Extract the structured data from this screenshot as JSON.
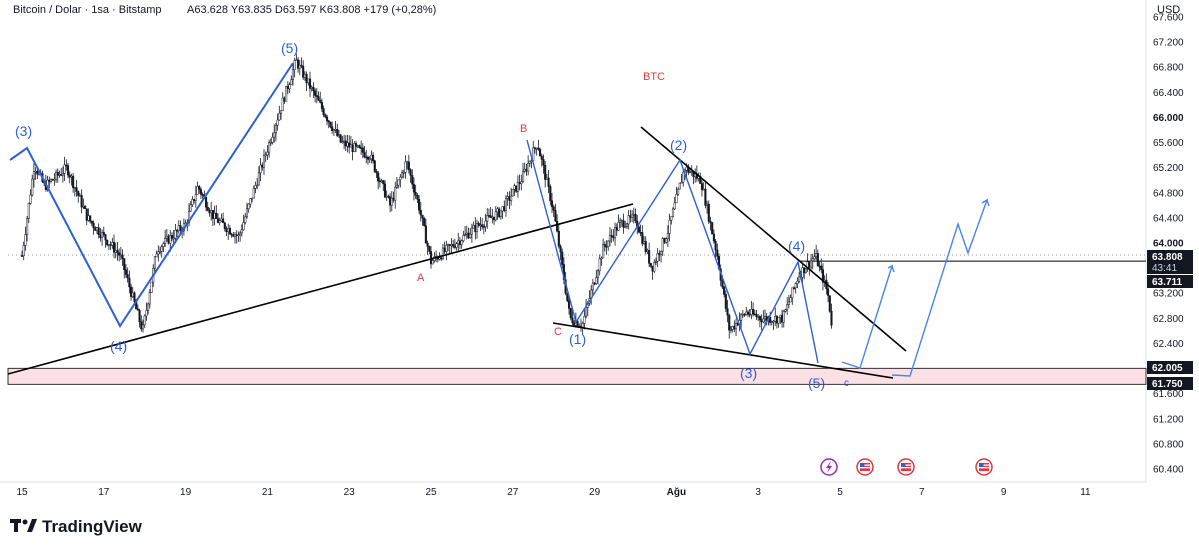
{
  "header": {
    "symbol": "Bitcoin / Dolar · 1sa · Bitstamp",
    "ohlc": "A63.628  Y63.835  D63.597  K63.808  +179 (+0,28%)",
    "currency": "USD"
  },
  "brand": {
    "name": "TradingView",
    "logo_icon": "tradingview-logo-icon"
  },
  "price_tags": {
    "last_price": "63.808",
    "countdown": "43:41",
    "line_a": "63.711",
    "zone_top": "62.005",
    "zone_bottom": "61.750"
  },
  "colors": {
    "up": "#089981",
    "candle": "#131722",
    "wave_blue": "#2f5fd0",
    "projection_blue": "#4a86e8",
    "annotation_red": "#e0383e",
    "zone_fill": "#fbe0e5",
    "trendline": "#000000"
  },
  "event_icons": [
    "lightning-event-icon",
    "us-flag-event-icon",
    "us-flag-event-icon",
    "us-flag-event-icon"
  ],
  "chart_data": {
    "type": "candlestick",
    "title": "BTC",
    "ylim": [
      60200,
      67800
    ],
    "y_ticks": [
      "60.400",
      "60.800",
      "61.200",
      "61.600",
      "62.000",
      "62.400",
      "62.800",
      "63.200",
      "63.600",
      "64.000",
      "64.400",
      "64.800",
      "65.200",
      "65.600",
      "66.000",
      "66.400",
      "66.800",
      "67.200",
      "67.600"
    ],
    "x_tick_labels": [
      "15",
      "17",
      "19",
      "21",
      "23",
      "25",
      "27",
      "29",
      "Ağu",
      "3",
      "5",
      "7",
      "9",
      "11"
    ],
    "support_zone": [
      61750,
      62005
    ],
    "horizontal_lines": [
      63711
    ],
    "last_price": 63808,
    "waves": [
      {
        "label": "(3)",
        "price": 65550,
        "color": "blue"
      },
      {
        "label": "(4)",
        "price": 62600,
        "color": "blue"
      },
      {
        "label": "(5)",
        "price": 66950,
        "color": "blue"
      },
      {
        "label": "A",
        "price": 63700,
        "color": "red"
      },
      {
        "label": "B",
        "price": 65650,
        "color": "red"
      },
      {
        "label": "C",
        "price": 62700,
        "color": "red"
      },
      {
        "label": "(1)",
        "price": 62700,
        "color": "blue"
      },
      {
        "label": "(2)",
        "price": 65300,
        "color": "blue"
      },
      {
        "label": "(3)",
        "price": 62300,
        "color": "blue"
      },
      {
        "label": "(4)",
        "price": 63800,
        "color": "blue"
      },
      {
        "label": "(5)",
        "price": 62100,
        "color": "blue"
      },
      {
        "label": "c",
        "price": 61950,
        "color": "blue"
      }
    ],
    "pivots": [
      {
        "t": 0.0,
        "p": 63800
      },
      {
        "t": 0.3,
        "p": 65250
      },
      {
        "t": 0.55,
        "p": 64900
      },
      {
        "t": 1.1,
        "p": 65200
      },
      {
        "t": 1.6,
        "p": 64400
      },
      {
        "t": 2.4,
        "p": 63800
      },
      {
        "t": 2.95,
        "p": 62600
      },
      {
        "t": 3.3,
        "p": 63900
      },
      {
        "t": 4.0,
        "p": 64300
      },
      {
        "t": 4.3,
        "p": 64900
      },
      {
        "t": 4.7,
        "p": 64400
      },
      {
        "t": 5.3,
        "p": 64100
      },
      {
        "t": 5.9,
        "p": 65300
      },
      {
        "t": 6.7,
        "p": 66900
      },
      {
        "t": 7.2,
        "p": 66300
      },
      {
        "t": 7.8,
        "p": 65600
      },
      {
        "t": 8.5,
        "p": 65400
      },
      {
        "t": 9.0,
        "p": 64600
      },
      {
        "t": 9.4,
        "p": 65300
      },
      {
        "t": 9.7,
        "p": 64600
      },
      {
        "t": 10.0,
        "p": 63700
      },
      {
        "t": 10.6,
        "p": 64000
      },
      {
        "t": 11.2,
        "p": 64300
      },
      {
        "t": 11.7,
        "p": 64500
      },
      {
        "t": 12.2,
        "p": 65000
      },
      {
        "t": 12.6,
        "p": 65600
      },
      {
        "t": 13.0,
        "p": 64500
      },
      {
        "t": 13.4,
        "p": 62800
      },
      {
        "t": 13.7,
        "p": 62700
      },
      {
        "t": 14.2,
        "p": 63900
      },
      {
        "t": 14.6,
        "p": 64300
      },
      {
        "t": 15.0,
        "p": 64400
      },
      {
        "t": 15.4,
        "p": 63600
      },
      {
        "t": 15.8,
        "p": 64200
      },
      {
        "t": 16.2,
        "p": 65200
      },
      {
        "t": 16.6,
        "p": 65000
      },
      {
        "t": 17.0,
        "p": 63800
      },
      {
        "t": 17.3,
        "p": 62600
      },
      {
        "t": 17.7,
        "p": 62900
      },
      {
        "t": 18.1,
        "p": 62800
      },
      {
        "t": 18.6,
        "p": 62800
      },
      {
        "t": 19.0,
        "p": 63500
      },
      {
        "t": 19.4,
        "p": 63800
      },
      {
        "t": 19.7,
        "p": 63200
      },
      {
        "t": 19.9,
        "p": 62200
      },
      {
        "t": 20.0,
        "p": 62500
      },
      {
        "t": 20.15,
        "p": 63700
      },
      {
        "t": 20.25,
        "p": 63800
      }
    ]
  }
}
